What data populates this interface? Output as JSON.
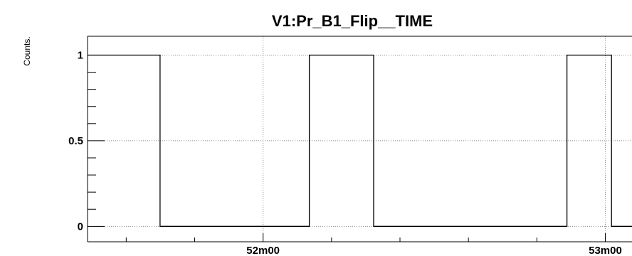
{
  "chart_data": {
    "type": "line",
    "step": true,
    "title": "V1:Pr_B1_Flip__TIME",
    "ylabel": "Counts.",
    "xlabel": "",
    "x_unit": "minutes",
    "xlim": [
      51.487,
      53.078
    ],
    "ylim": [
      -0.09,
      1.11
    ],
    "grid": true,
    "x_ticks": [
      {
        "value": 52.0,
        "label": "52m00"
      },
      {
        "value": 53.0,
        "label": "53m00"
      }
    ],
    "y_ticks": [
      {
        "value": 0,
        "label": "0"
      },
      {
        "value": 0.5,
        "label": "0.5"
      },
      {
        "value": 1,
        "label": "1"
      }
    ],
    "series": [
      {
        "x": [
          51.487,
          51.699,
          51.699,
          52.135,
          52.135,
          52.323,
          52.323,
          52.888,
          52.888,
          53.018,
          53.018,
          53.078
        ],
        "values": [
          1,
          1,
          0,
          0,
          1,
          1,
          0,
          0,
          1,
          1,
          0,
          0
        ]
      }
    ],
    "colors": {
      "line": "#000000",
      "grid": "#888888",
      "axis": "#000000"
    }
  }
}
